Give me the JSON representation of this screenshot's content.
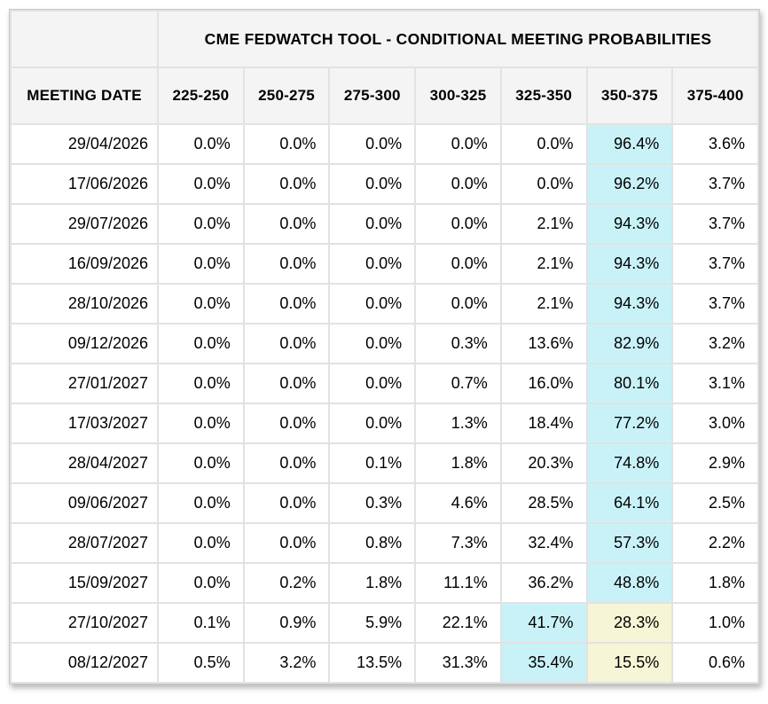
{
  "chart_data": {
    "type": "table",
    "title": "CME FEDWATCH TOOL - CONDITIONAL MEETING PROBABILITIES",
    "columns": [
      "MEETING DATE",
      "225-250",
      "250-275",
      "275-300",
      "300-325",
      "325-350",
      "350-375",
      "375-400"
    ],
    "rows": [
      {
        "date": "29/04/2026",
        "values": [
          "0.0%",
          "0.0%",
          "0.0%",
          "0.0%",
          "0.0%",
          "96.4%",
          "3.6%"
        ],
        "highlight_cyan": 5,
        "highlight_yellow": null
      },
      {
        "date": "17/06/2026",
        "values": [
          "0.0%",
          "0.0%",
          "0.0%",
          "0.0%",
          "0.0%",
          "96.2%",
          "3.7%"
        ],
        "highlight_cyan": 5,
        "highlight_yellow": null
      },
      {
        "date": "29/07/2026",
        "values": [
          "0.0%",
          "0.0%",
          "0.0%",
          "0.0%",
          "2.1%",
          "94.3%",
          "3.7%"
        ],
        "highlight_cyan": 5,
        "highlight_yellow": null
      },
      {
        "date": "16/09/2026",
        "values": [
          "0.0%",
          "0.0%",
          "0.0%",
          "0.0%",
          "2.1%",
          "94.3%",
          "3.7%"
        ],
        "highlight_cyan": 5,
        "highlight_yellow": null
      },
      {
        "date": "28/10/2026",
        "values": [
          "0.0%",
          "0.0%",
          "0.0%",
          "0.0%",
          "2.1%",
          "94.3%",
          "3.7%"
        ],
        "highlight_cyan": 5,
        "highlight_yellow": null
      },
      {
        "date": "09/12/2026",
        "values": [
          "0.0%",
          "0.0%",
          "0.0%",
          "0.3%",
          "13.6%",
          "82.9%",
          "3.2%"
        ],
        "highlight_cyan": 5,
        "highlight_yellow": null
      },
      {
        "date": "27/01/2027",
        "values": [
          "0.0%",
          "0.0%",
          "0.0%",
          "0.7%",
          "16.0%",
          "80.1%",
          "3.1%"
        ],
        "highlight_cyan": 5,
        "highlight_yellow": null
      },
      {
        "date": "17/03/2027",
        "values": [
          "0.0%",
          "0.0%",
          "0.0%",
          "1.3%",
          "18.4%",
          "77.2%",
          "3.0%"
        ],
        "highlight_cyan": 5,
        "highlight_yellow": null
      },
      {
        "date": "28/04/2027",
        "values": [
          "0.0%",
          "0.0%",
          "0.1%",
          "1.8%",
          "20.3%",
          "74.8%",
          "2.9%"
        ],
        "highlight_cyan": 5,
        "highlight_yellow": null
      },
      {
        "date": "09/06/2027",
        "values": [
          "0.0%",
          "0.0%",
          "0.3%",
          "4.6%",
          "28.5%",
          "64.1%",
          "2.5%"
        ],
        "highlight_cyan": 5,
        "highlight_yellow": null
      },
      {
        "date": "28/07/2027",
        "values": [
          "0.0%",
          "0.0%",
          "0.8%",
          "7.3%",
          "32.4%",
          "57.3%",
          "2.2%"
        ],
        "highlight_cyan": 5,
        "highlight_yellow": null
      },
      {
        "date": "15/09/2027",
        "values": [
          "0.0%",
          "0.2%",
          "1.8%",
          "11.1%",
          "36.2%",
          "48.8%",
          "1.8%"
        ],
        "highlight_cyan": 5,
        "highlight_yellow": null
      },
      {
        "date": "27/10/2027",
        "values": [
          "0.1%",
          "0.9%",
          "5.9%",
          "22.1%",
          "41.7%",
          "28.3%",
          "1.0%"
        ],
        "highlight_cyan": 4,
        "highlight_yellow": 5
      },
      {
        "date": "08/12/2027",
        "values": [
          "0.5%",
          "3.2%",
          "13.5%",
          "31.3%",
          "35.4%",
          "15.5%",
          "0.6%"
        ],
        "highlight_cyan": 4,
        "highlight_yellow": 5
      }
    ],
    "layout": {
      "grid": true,
      "value_alignment": "right",
      "highlight_rule": "max probability per row shaded cyan; secondary shading pale yellow on last two rows"
    }
  },
  "colors": {
    "highlight_cyan": "#c9f2f8",
    "highlight_yellow": "#f6f5d6",
    "header_bg": "#f4f4f4",
    "gridline": "#e2e2e2",
    "outer_border": "#c9c9c9",
    "text": "#000000",
    "row_bg": "#ffffff"
  }
}
